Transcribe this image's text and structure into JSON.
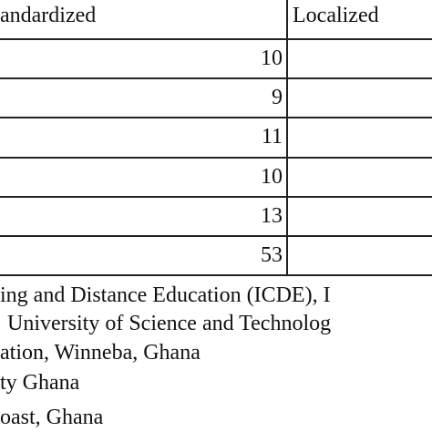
{
  "table": {
    "header": [
      "andardized",
      "Localized"
    ],
    "rows": [
      [
        10
      ],
      [
        9
      ],
      [
        11
      ],
      [
        10
      ],
      [
        13
      ],
      [
        53
      ]
    ]
  },
  "footnotes": [
    "ing and Distance Education (ICDE), I",
    "University of Science and Technolog",
    "ation, Winneba, Ghana",
    "ty Ghana",
    "oast, Ghana"
  ]
}
